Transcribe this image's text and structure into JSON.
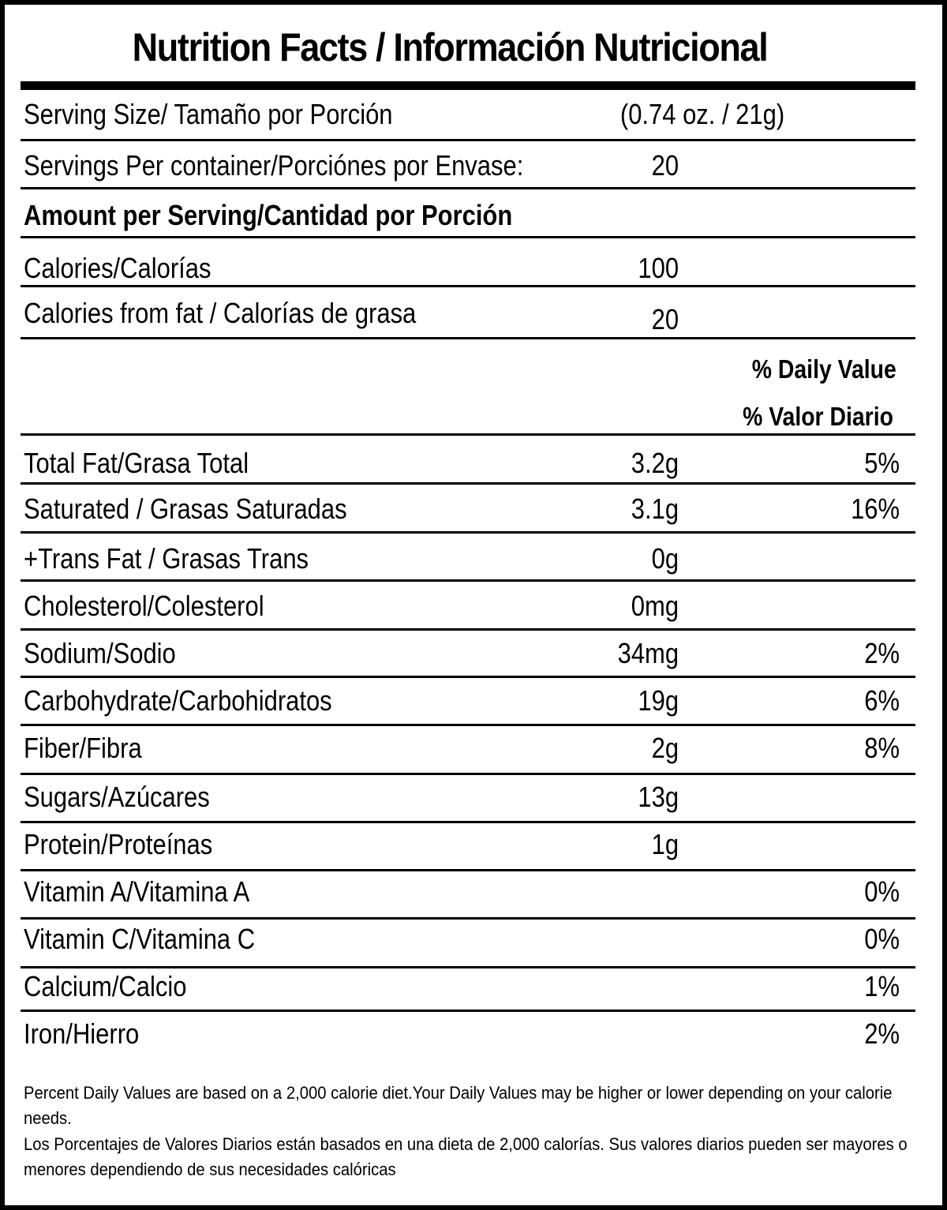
{
  "title": "Nutrition Facts / Información Nutricional",
  "serving_size": {
    "label": "Serving Size/ Tamaño por Porción",
    "value": "(0.74 oz. / 21g)"
  },
  "servings_per_container": {
    "label": "Servings Per container/Porciónes por Envase:",
    "value": "20"
  },
  "amount_header": "Amount per Serving/Cantidad por Porción",
  "calories": {
    "label": "Calories/Calorías",
    "value": "100"
  },
  "calories_from_fat": {
    "label": "Calories from fat / Calorías de grasa",
    "value": "20"
  },
  "daily_value_header": {
    "en": "% Daily Value",
    "es": "% Valor Diario"
  },
  "nutrients": [
    {
      "label": "Total Fat/Grasa Total",
      "amount": "3.2g",
      "dv": "5%"
    },
    {
      "label": "Saturated / Grasas Saturadas",
      "amount": "3.1g",
      "dv": "16%"
    },
    {
      "label": "+Trans Fat / Grasas Trans",
      "amount": "0g",
      "dv": ""
    },
    {
      "label": "Cholesterol/Colesterol",
      "amount": "0mg",
      "dv": ""
    },
    {
      "label": "Sodium/Sodio",
      "amount": "34mg",
      "dv": "2%"
    },
    {
      "label": "Carbohydrate/Carbohidratos",
      "amount": "19g",
      "dv": "6%"
    },
    {
      "label": "Fiber/Fibra",
      "amount": "2g",
      "dv": "8%"
    },
    {
      "label": "Sugars/Azúcares",
      "amount": "13g",
      "dv": ""
    },
    {
      "label": "Protein/Proteínas",
      "amount": "1g",
      "dv": ""
    },
    {
      "label": "Vitamin A/Vitamina A",
      "amount": "",
      "dv": "0%"
    },
    {
      "label": "Vitamin C/Vitamina C",
      "amount": "",
      "dv": "0%"
    },
    {
      "label": "Calcium/Calcio",
      "amount": "",
      "dv": "1%"
    },
    {
      "label": "Iron/Hierro",
      "amount": "",
      "dv": "2%"
    }
  ],
  "footnote": {
    "en": "Percent Daily Values are based on a 2,000 calorie diet.Your Daily Values may be higher or lower depending on your calorie needs.",
    "es": "Los Porcentajes de Valores Diarios están basados en una dieta de 2,000 calorías. Sus valores diarios pueden ser mayores o menores dependiendo de sus necesidades calóricas"
  }
}
